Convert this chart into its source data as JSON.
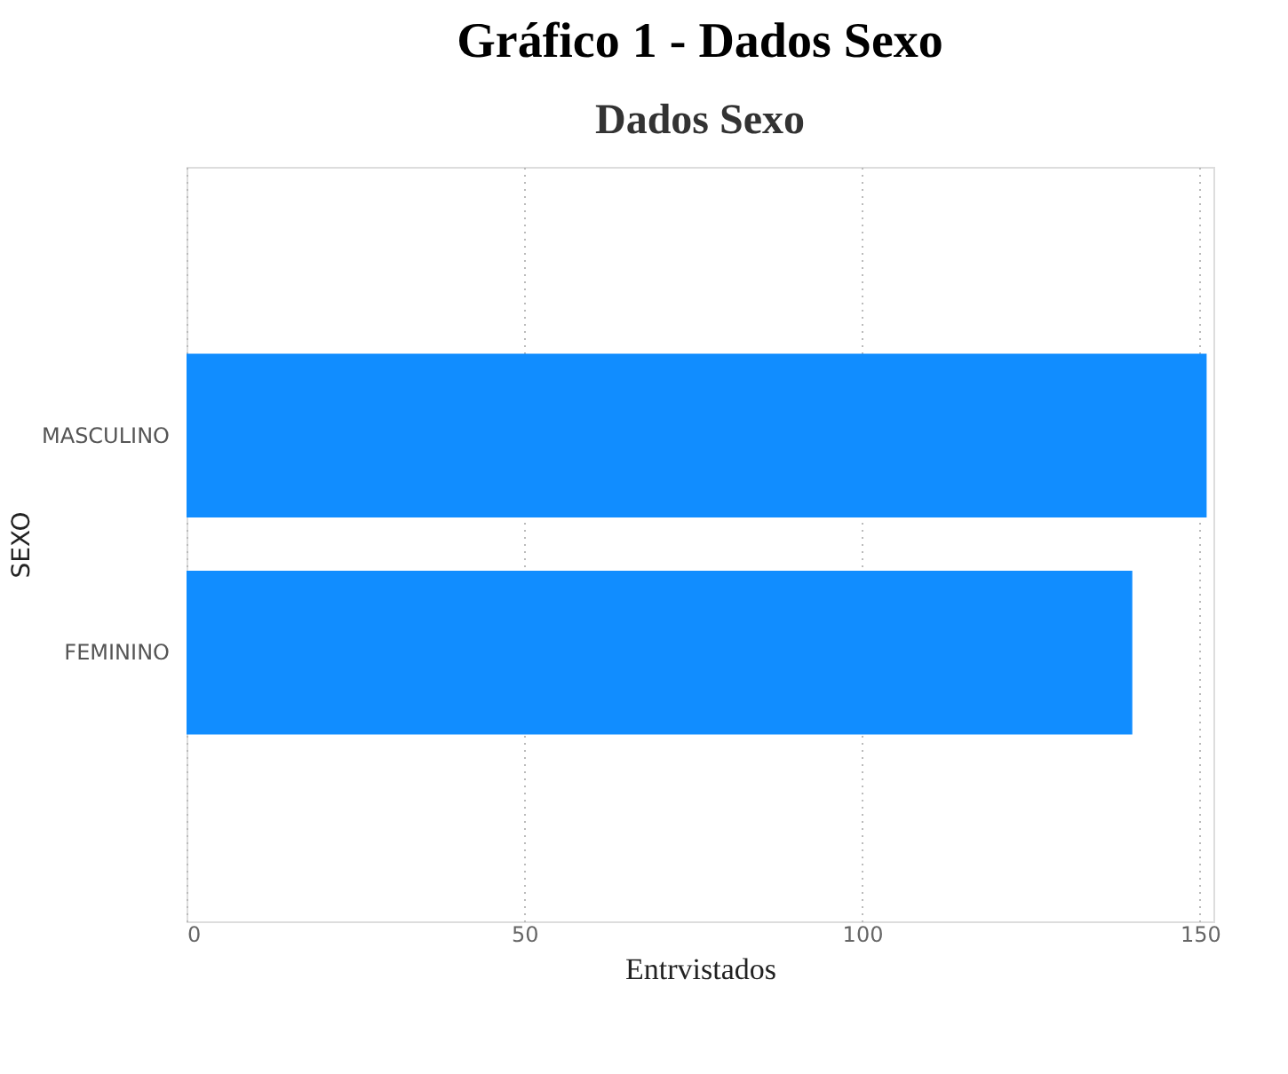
{
  "chart_data": {
    "type": "bar",
    "title": "Gráfico 1 - Dados Sexo",
    "subtitle": "Dados Sexo",
    "orientation": "horizontal",
    "categories": [
      "MASCULINO",
      "FEMININO"
    ],
    "series": [
      {
        "color": "#118dff",
        "values": [
          151,
          140
        ]
      }
    ],
    "xlabel": "Entrvistados",
    "ylabel": "SEXO",
    "xlim": [
      0,
      152
    ],
    "xticks": [
      0,
      50,
      100,
      150
    ],
    "grid": "x"
  }
}
